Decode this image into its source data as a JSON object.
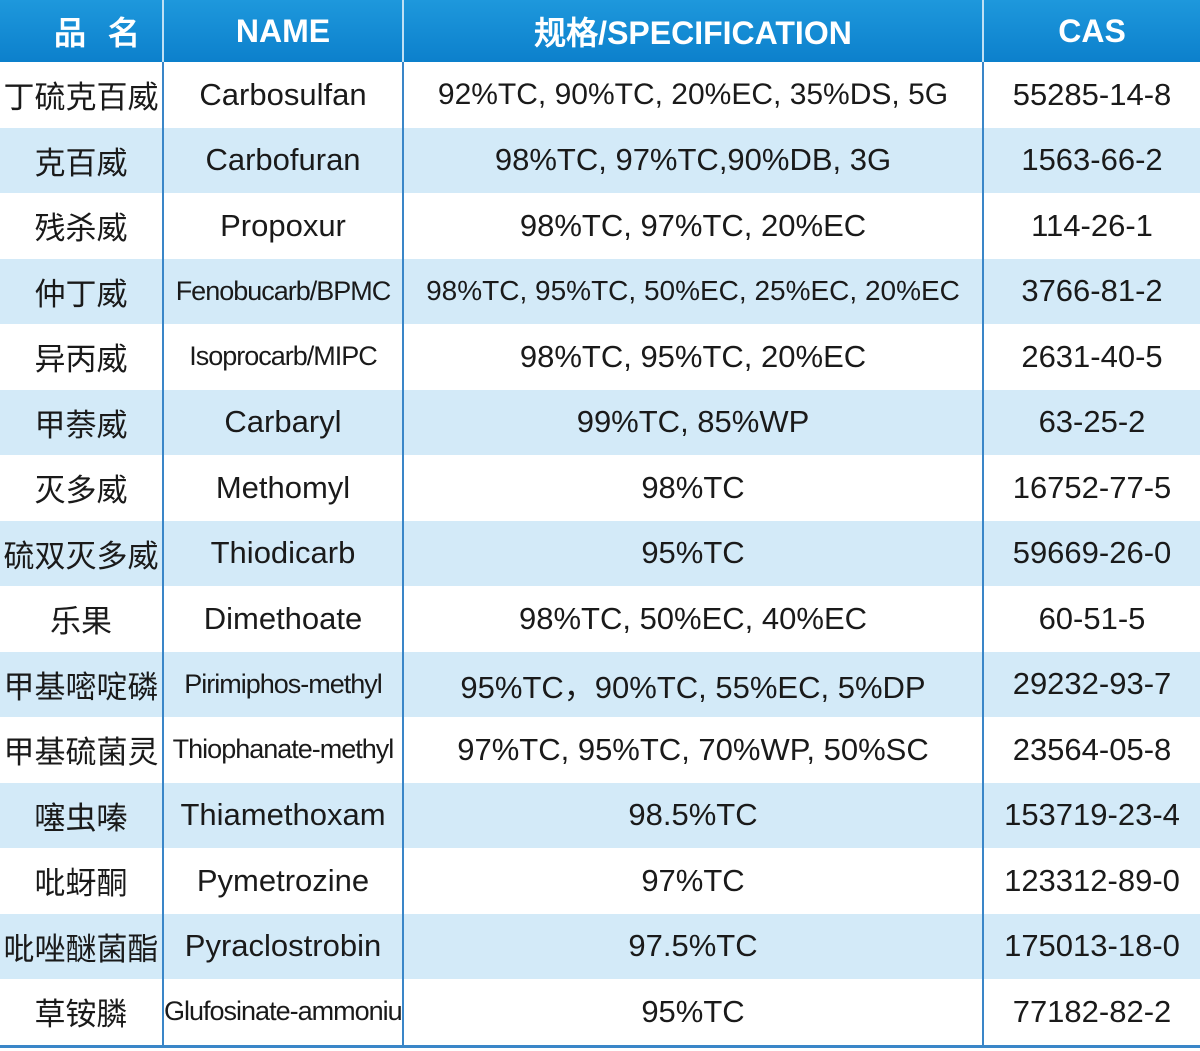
{
  "headers": {
    "cn_name": "品名",
    "name": "NAME",
    "spec": "规格/SPECIFICATION",
    "cas": "CAS"
  },
  "colors": {
    "header": "#1488d2",
    "row_alt": "#d3eaf8",
    "divider": "#3a86c8"
  },
  "rows": [
    {
      "cn": "丁硫克百威",
      "name": "Carbosulfan",
      "spec": "92%TC, 90%TC, 20%EC, 35%DS, 5G",
      "cas": "55285-14-8"
    },
    {
      "cn": "克百威",
      "name": "Carbofuran",
      "spec": "98%TC, 97%TC,90%DB, 3G",
      "cas": "1563-66-2"
    },
    {
      "cn": "残杀威",
      "name": "Propoxur",
      "spec": "98%TC, 97%TC, 20%EC",
      "cas": "114-26-1"
    },
    {
      "cn": "仲丁威",
      "name": "Fenobucarb/BPMC",
      "spec": "98%TC, 95%TC, 50%EC, 25%EC, 20%EC",
      "cas": "3766-81-2"
    },
    {
      "cn": "异丙威",
      "name": "Isoprocarb/MIPC",
      "spec": "98%TC, 95%TC, 20%EC",
      "cas": "2631-40-5"
    },
    {
      "cn": "甲萘威",
      "name": "Carbaryl",
      "spec": "99%TC, 85%WP",
      "cas": "63-25-2"
    },
    {
      "cn": "灭多威",
      "name": "Methomyl",
      "spec": "98%TC",
      "cas": "16752-77-5"
    },
    {
      "cn": "硫双灭多威",
      "name": "Thiodicarb",
      "spec": "95%TC",
      "cas": "59669-26-0"
    },
    {
      "cn": "乐果",
      "name": "Dimethoate",
      "spec": "98%TC, 50%EC, 40%EC",
      "cas": "60-51-5"
    },
    {
      "cn": "甲基嘧啶磷",
      "name": "Pirimiphos-methyl",
      "spec": "95%TC，90%TC, 55%EC, 5%DP",
      "cas": "29232-93-7"
    },
    {
      "cn": "甲基硫菌灵",
      "name": "Thiophanate-methyl",
      "spec": "97%TC, 95%TC, 70%WP, 50%SC",
      "cas": "23564-05-8"
    },
    {
      "cn": "噻虫嗪",
      "name": "Thiamethoxam",
      "spec": "98.5%TC",
      "cas": "153719-23-4"
    },
    {
      "cn": "吡蚜酮",
      "name": "Pymetrozine",
      "spec": "97%TC",
      "cas": "123312-89-0"
    },
    {
      "cn": "吡唑醚菌酯",
      "name": "Pyraclostrobin",
      "spec": "97.5%TC",
      "cas": "175013-18-0"
    },
    {
      "cn": "草铵膦",
      "name": "Glufosinate-ammonium",
      "spec": "95%TC",
      "cas": "77182-82-2"
    }
  ]
}
